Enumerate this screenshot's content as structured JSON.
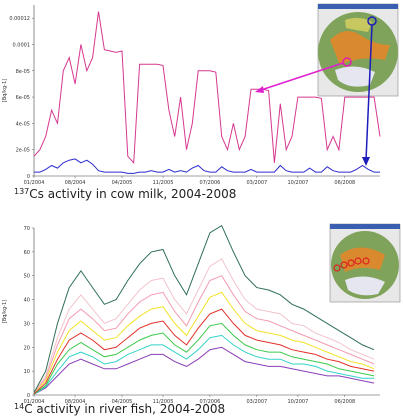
{
  "chart_data": [
    {
      "type": "line",
      "caption_superscript": "137",
      "caption": "Cs activity in cow milk, 2004-2008",
      "y_axis_label": "[Bq/kg-1]",
      "x": [
        "01/2004",
        "02/2004",
        "03/2004",
        "04/2004",
        "05/2004",
        "06/2004",
        "07/2004",
        "08/2004",
        "09/2004",
        "10/2004",
        "11/2004",
        "12/2004",
        "01/2005",
        "02/2005",
        "03/2005",
        "04/2005",
        "05/2005",
        "06/2005",
        "07/2005",
        "08/2005",
        "09/2005",
        "10/2005",
        "11/2005",
        "12/2005",
        "01/2006",
        "02/2006",
        "03/2006",
        "04/2006",
        "05/2006",
        "06/2006",
        "07/2006",
        "08/2006",
        "09/2006",
        "10/2006",
        "11/2006",
        "12/2006",
        "01/2007",
        "02/2007",
        "03/2007",
        "04/2007",
        "05/2007",
        "06/2007",
        "07/2007",
        "08/2007",
        "09/2007",
        "10/2007",
        "11/2007",
        "12/2007",
        "01/2008",
        "02/2008",
        "03/2008",
        "04/2008",
        "05/2008",
        "06/2008",
        "07/2008",
        "08/2008",
        "09/2008",
        "10/2008",
        "11/2008",
        "12/2008"
      ],
      "series": [
        {
          "color": "#d6388f",
          "values": [
            1.5e-05,
            2e-05,
            3e-05,
            5e-05,
            4e-05,
            8e-05,
            9e-05,
            7e-05,
            0.0001,
            8e-05,
            9e-05,
            0.000125,
            9.6e-05,
            9.5e-05,
            9.4e-05,
            9.5e-05,
            1.5e-05,
            1e-05,
            8.5e-05,
            8.5e-05,
            8.5e-05,
            8.5e-05,
            8.4e-05,
            5e-05,
            3e-05,
            6e-05,
            2e-05,
            4e-05,
            8e-05,
            8e-05,
            8e-05,
            7.9e-05,
            3e-05,
            2e-05,
            4e-05,
            2e-05,
            3e-05,
            6.6e-05,
            6.6e-05,
            6.6e-05,
            6.5e-05,
            1e-05,
            5.5e-05,
            2e-05,
            3e-05,
            6e-05,
            6e-05,
            6e-05,
            6e-05,
            5.9e-05,
            2e-05,
            3e-05,
            2e-05,
            6e-05,
            6e-05,
            6e-05,
            6e-05,
            6e-05,
            6e-05,
            3e-05
          ]
        },
        {
          "color": "#2b2bd0",
          "values": [
            3e-06,
            3e-06,
            5e-06,
            8e-06,
            6e-06,
            1e-05,
            1.2e-05,
            1.3e-05,
            1e-05,
            1.2e-05,
            9e-06,
            4e-06,
            3e-06,
            3e-06,
            3e-06,
            3e-06,
            2e-06,
            2e-06,
            3e-06,
            3e-06,
            4e-06,
            3e-06,
            3e-06,
            5e-06,
            3e-06,
            4e-06,
            3e-06,
            6e-06,
            8e-06,
            4e-06,
            3e-06,
            3e-06,
            7e-06,
            4e-06,
            3e-06,
            3e-06,
            3e-06,
            5e-06,
            3e-06,
            3e-06,
            3e-06,
            3e-06,
            8e-06,
            4e-06,
            3e-06,
            3e-06,
            3e-06,
            6e-06,
            3e-06,
            3e-06,
            7e-06,
            4e-06,
            3e-06,
            3e-06,
            3e-06,
            5e-06,
            8e-06,
            5e-06,
            3e-06,
            3e-06
          ]
        }
      ],
      "ylim": [
        0,
        0.00013
      ],
      "yticks": [
        0,
        {
          "value": 2e-05,
          "label": "2e-05"
        },
        {
          "value": 4e-05,
          "label": "4e-05"
        },
        {
          "value": 6e-05,
          "label": "6e-05"
        },
        {
          "value": 8e-05,
          "label": "8e-05"
        },
        0.0001,
        0.00012
      ],
      "xticks": [
        "01/2004",
        "08/2004",
        "04/2005",
        "11/2005",
        "07/2006",
        "03/2007",
        "10/2007",
        "06/2008"
      ]
    },
    {
      "type": "line",
      "caption_superscript": "14",
      "caption": "C activity in river fish, 2004-2008",
      "y_axis_label": "[Bq/kg-1]",
      "x": [
        "01/2004",
        "03/2004",
        "05/2004",
        "07/2004",
        "09/2004",
        "11/2004",
        "01/2005",
        "03/2005",
        "05/2005",
        "07/2005",
        "09/2005",
        "11/2005",
        "01/2006",
        "03/2006",
        "05/2006",
        "07/2006",
        "09/2006",
        "11/2006",
        "01/2007",
        "03/2007",
        "05/2007",
        "07/2007",
        "09/2007",
        "11/2007",
        "01/2008",
        "03/2008",
        "05/2008",
        "07/2008",
        "09/2008",
        "11/2008"
      ],
      "series": [
        {
          "color": "#2f6f55",
          "values": [
            1,
            10,
            30,
            45,
            52,
            45,
            38,
            40,
            48,
            55,
            60,
            61,
            50,
            42,
            55,
            68,
            71,
            60,
            50,
            45,
            44,
            42,
            38,
            36,
            33,
            30,
            27,
            24,
            21,
            19
          ]
        },
        {
          "color": "#f2c4cc",
          "values": [
            1,
            8,
            24,
            36,
            42,
            36,
            30,
            32,
            38,
            44,
            48,
            49,
            40,
            34,
            44,
            54,
            57,
            48,
            40,
            36,
            35,
            34,
            30,
            29,
            26,
            24,
            22,
            19,
            17,
            15
          ]
        },
        {
          "color": "#f49ab0",
          "values": [
            1,
            7,
            21,
            32,
            36,
            32,
            27,
            28,
            34,
            39,
            42,
            43,
            35,
            29,
            39,
            48,
            50,
            42,
            35,
            32,
            31,
            29,
            27,
            25,
            23,
            21,
            19,
            17,
            15,
            13
          ]
        },
        {
          "color": "#f2e22a",
          "values": [
            1,
            6,
            18,
            27,
            31,
            27,
            23,
            24,
            29,
            33,
            36,
            37,
            30,
            25,
            33,
            41,
            43,
            36,
            30,
            27,
            26,
            25,
            23,
            22,
            20,
            18,
            16,
            14,
            13,
            11
          ]
        },
        {
          "color": "#e2302a",
          "values": [
            0.5,
            5,
            15,
            23,
            26,
            23,
            19,
            20,
            24,
            28,
            30,
            31,
            25,
            21,
            28,
            34,
            36,
            30,
            25,
            23,
            22,
            21,
            19,
            18,
            17,
            15,
            14,
            12,
            11,
            10
          ]
        },
        {
          "color": "#3cc94c",
          "values": [
            0.4,
            4,
            13,
            19,
            22,
            19,
            16,
            17,
            20,
            23,
            25,
            26,
            21,
            18,
            23,
            29,
            30,
            25,
            21,
            19,
            18,
            18,
            16,
            15,
            14,
            13,
            11,
            10,
            9,
            8
          ]
        },
        {
          "color": "#36d2c6",
          "values": [
            0.3,
            3.5,
            10,
            16,
            18,
            16,
            13,
            14,
            17,
            19,
            21,
            21,
            18,
            15,
            19,
            24,
            25,
            21,
            18,
            16,
            15,
            15,
            13,
            13,
            12,
            10,
            9,
            8,
            7,
            7
          ]
        },
        {
          "color": "#8a3fb8",
          "values": [
            0.3,
            3,
            8,
            13,
            15,
            13,
            11,
            11,
            13,
            15,
            17,
            17,
            14,
            12,
            15,
            19,
            20,
            17,
            14,
            13,
            12,
            12,
            11,
            10,
            9,
            8,
            8,
            7,
            6,
            5
          ]
        }
      ],
      "ylim": [
        0,
        70
      ],
      "yticks": [
        0,
        10,
        20,
        30,
        40,
        50,
        60,
        70
      ],
      "xticks": [
        "01/2004",
        "08/2004",
        "04/2005",
        "11/2005",
        "07/2006",
        "03/2007",
        "10/2007",
        "06/2008"
      ]
    }
  ]
}
